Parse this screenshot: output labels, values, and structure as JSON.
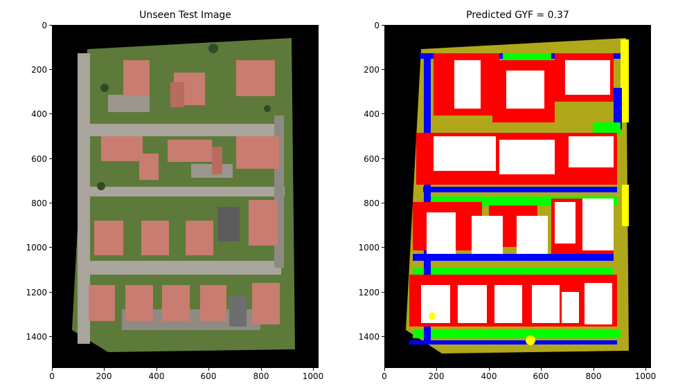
{
  "left_panel": {
    "title": "Unseen Test Image",
    "yticks": [
      "0",
      "200",
      "400",
      "600",
      "800",
      "1000",
      "1200",
      "1400"
    ],
    "xticks": [
      "0",
      "200",
      "400",
      "600",
      "800",
      "1000"
    ]
  },
  "right_panel": {
    "title": "Predicted GYF =  0.37",
    "yticks": [
      "0",
      "200",
      "400",
      "600",
      "800",
      "1000",
      "1200",
      "1400"
    ],
    "xticks": [
      "0",
      "200",
      "400",
      "600",
      "800",
      "1000"
    ]
  },
  "colors": {
    "background": "#000000",
    "roof": "#c97d70",
    "grass": "#5d7a3a",
    "road": "#a9a59c",
    "seg_building": "#ffffff",
    "seg_roof_red": "#ff0000",
    "seg_green": "#00ff00",
    "seg_blue": "#0000ff",
    "seg_olive": "#b0a81a",
    "seg_yellow": "#ffff00"
  }
}
